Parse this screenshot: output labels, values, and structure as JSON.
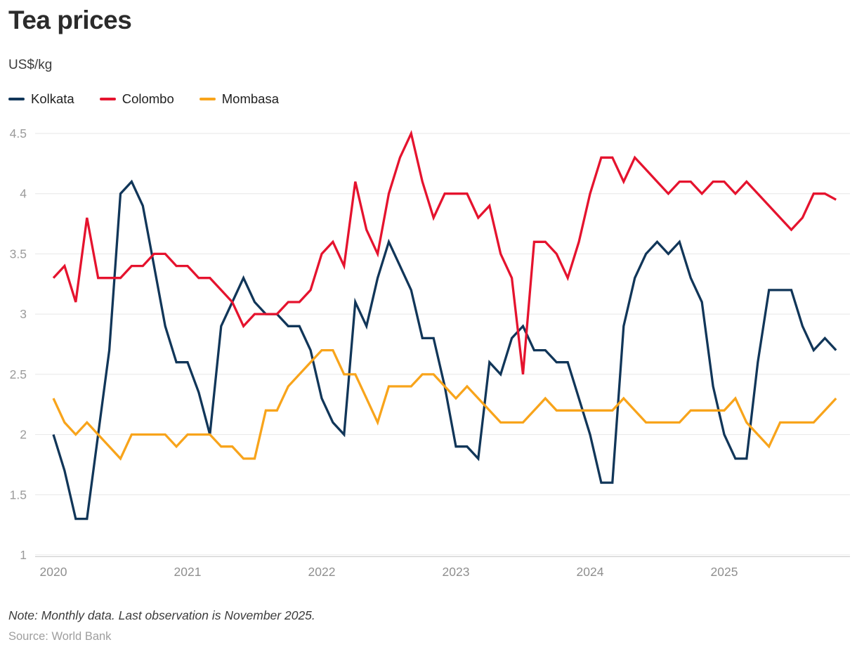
{
  "header": {
    "title": "Tea prices",
    "units": "US$/kg"
  },
  "chart_data": {
    "type": "line",
    "title": "Tea prices",
    "ylabel": "US$/kg",
    "xlabel": "",
    "grid": "horizontal",
    "legend_position": "top-left",
    "x_monthly_start": "2020-01",
    "x_monthly_end": "2025-11",
    "x_tick_labels": [
      "2020",
      "2021",
      "2022",
      "2023",
      "2024",
      "2025"
    ],
    "y_ticks": [
      {
        "value": 4.5,
        "label": "4.5"
      },
      {
        "value": 4.0,
        "label": "4"
      },
      {
        "value": 3.5,
        "label": "3.5"
      },
      {
        "value": 3.0,
        "label": "3"
      },
      {
        "value": 2.5,
        "label": "2.5"
      },
      {
        "value": 2.0,
        "label": "2"
      },
      {
        "value": 1.5,
        "label": "1.5"
      },
      {
        "value": 1.0,
        "label": "1"
      }
    ],
    "ylim": [
      1,
      4.5
    ],
    "series": [
      {
        "name": "Kolkata",
        "color": "#113659",
        "values": [
          2.0,
          1.7,
          1.3,
          1.3,
          2.0,
          2.7,
          4.0,
          4.1,
          3.9,
          3.4,
          2.9,
          2.6,
          2.6,
          2.35,
          2.0,
          2.9,
          3.1,
          3.3,
          3.1,
          3.0,
          3.0,
          2.9,
          2.9,
          2.7,
          2.3,
          2.1,
          2.0,
          3.1,
          2.9,
          3.3,
          3.6,
          3.4,
          3.2,
          2.8,
          2.8,
          2.4,
          1.9,
          1.9,
          1.8,
          2.6,
          2.5,
          2.8,
          2.9,
          2.7,
          2.7,
          2.6,
          2.6,
          2.3,
          2.0,
          1.6,
          1.6,
          2.9,
          3.3,
          3.5,
          3.6,
          3.5,
          3.6,
          3.3,
          3.1,
          2.4,
          2.0,
          1.8,
          1.8,
          2.6,
          3.2,
          3.2,
          3.2,
          2.9,
          2.7,
          2.8,
          2.7
        ]
      },
      {
        "name": "Colombo",
        "color": "#e5132e",
        "values": [
          3.3,
          3.4,
          3.1,
          3.8,
          3.3,
          3.3,
          3.3,
          3.4,
          3.4,
          3.5,
          3.5,
          3.4,
          3.4,
          3.3,
          3.3,
          3.2,
          3.1,
          2.9,
          3.0,
          3.0,
          3.0,
          3.1,
          3.1,
          3.2,
          3.5,
          3.6,
          3.4,
          4.1,
          3.7,
          3.5,
          4.0,
          4.3,
          4.5,
          4.1,
          3.8,
          4.0,
          4.0,
          4.0,
          3.8,
          3.9,
          3.5,
          3.3,
          2.5,
          3.6,
          3.6,
          3.5,
          3.3,
          3.6,
          4.0,
          4.3,
          4.3,
          4.1,
          4.3,
          4.2,
          4.1,
          4.0,
          4.1,
          4.1,
          4.0,
          4.1,
          4.1,
          4.0,
          4.1,
          4.0,
          3.9,
          3.8,
          3.7,
          3.8,
          4.0,
          4.0,
          3.95
        ]
      },
      {
        "name": "Mombasa",
        "color": "#f8a41b",
        "values": [
          2.3,
          2.1,
          2.0,
          2.1,
          2.0,
          1.9,
          1.8,
          2.0,
          2.0,
          2.0,
          2.0,
          1.9,
          2.0,
          2.0,
          2.0,
          1.9,
          1.9,
          1.8,
          1.8,
          2.2,
          2.2,
          2.4,
          2.5,
          2.6,
          2.7,
          2.7,
          2.5,
          2.5,
          2.3,
          2.1,
          2.4,
          2.4,
          2.4,
          2.5,
          2.5,
          2.4,
          2.3,
          2.4,
          2.3,
          2.2,
          2.1,
          2.1,
          2.1,
          2.2,
          2.3,
          2.2,
          2.2,
          2.2,
          2.2,
          2.2,
          2.2,
          2.3,
          2.2,
          2.1,
          2.1,
          2.1,
          2.1,
          2.2,
          2.2,
          2.2,
          2.2,
          2.3,
          2.1,
          2.0,
          1.9,
          2.1,
          2.1,
          2.1,
          2.1,
          2.2,
          2.3
        ]
      }
    ]
  },
  "footer": {
    "note": "Note: Monthly data. Last observation is November 2025.",
    "source": "Source: World Bank"
  }
}
